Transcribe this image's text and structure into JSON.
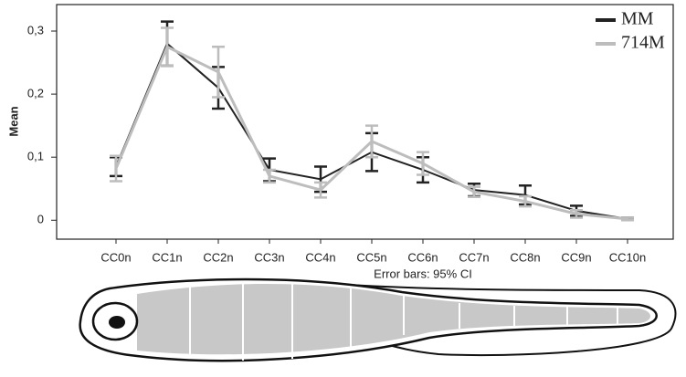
{
  "chart_data": {
    "type": "line",
    "y_label": "Mean",
    "note": "Error bars: 95% CI",
    "categories": [
      "CC0n",
      "CC1n",
      "CC2n",
      "CC3n",
      "CC4n",
      "CC5n",
      "CC6n",
      "CC7n",
      "CC8n",
      "CC9n",
      "CC10n"
    ],
    "series": [
      {
        "name": "MM",
        "color": "#222222",
        "values": [
          0.085,
          0.28,
          0.21,
          0.08,
          0.065,
          0.108,
          0.08,
          0.048,
          0.04,
          0.015,
          0.002
        ],
        "errors": [
          0.015,
          0.035,
          0.033,
          0.018,
          0.02,
          0.03,
          0.02,
          0.01,
          0.015,
          0.008,
          0.002
        ]
      },
      {
        "name": "714M",
        "color": "#bdbdbd",
        "values": [
          0.082,
          0.275,
          0.235,
          0.07,
          0.048,
          0.125,
          0.09,
          0.045,
          0.03,
          0.01,
          0.002
        ],
        "errors": [
          0.02,
          0.03,
          0.04,
          0.01,
          0.012,
          0.025,
          0.018,
          0.008,
          0.008,
          0.006,
          0.002
        ]
      }
    ],
    "ylim": [
      -0.03,
      0.342
    ],
    "yticks": [
      0,
      {
        "value": 0.1,
        "label": "0,1"
      },
      {
        "value": 0.2,
        "label": "0,2"
      },
      {
        "value": 0.3,
        "label": "0,3"
      }
    ],
    "legend": "top-right"
  }
}
